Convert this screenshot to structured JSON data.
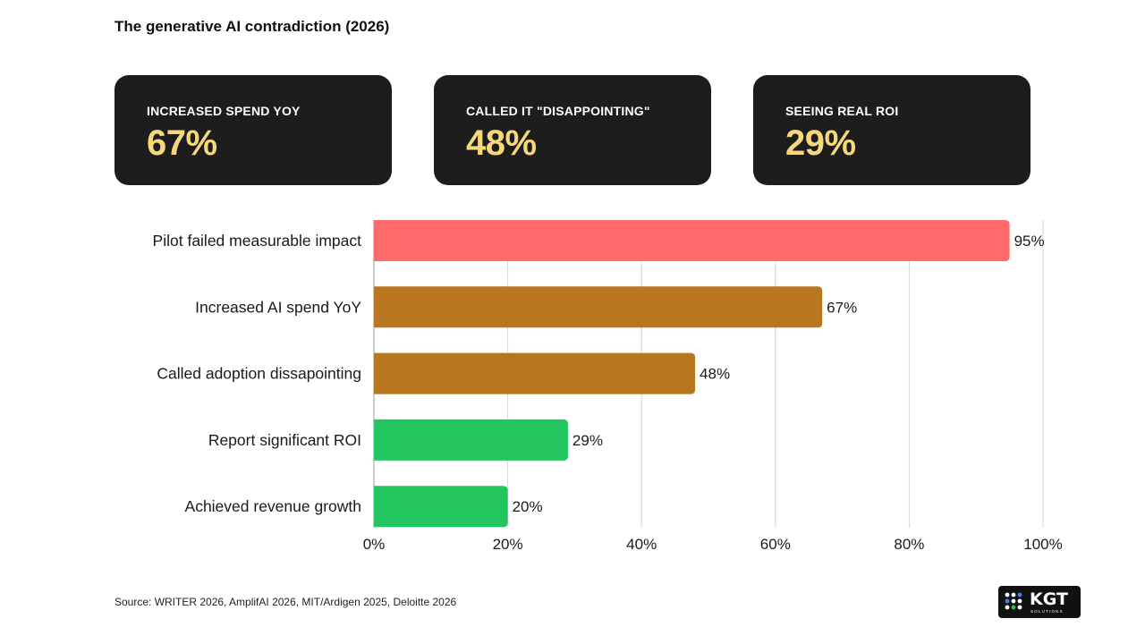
{
  "title": "The generative AI contradiction (2026)",
  "stats": [
    {
      "label": "INCREASED SPEND YOY",
      "value": "67%"
    },
    {
      "label": "CALLED IT \"DISAPPOINTING\"",
      "value": "48%"
    },
    {
      "label": "SEEING REAL ROI",
      "value": "29%"
    }
  ],
  "chart_data": {
    "type": "bar",
    "orientation": "horizontal",
    "title": "",
    "xlabel": "",
    "ylabel": "",
    "categories": [
      "Pilot failed measurable impact",
      "Increased AI spend YoY",
      "Called adoption dissapointing",
      "Report significant ROI",
      "Achieved revenue growth"
    ],
    "values": [
      95,
      67,
      48,
      29,
      20
    ],
    "value_labels": [
      "95%",
      "67%",
      "48%",
      "29%",
      "20%"
    ],
    "colors": [
      "#ff6b6b",
      "#b8771f",
      "#b8771f",
      "#22c55e",
      "#22c55e"
    ],
    "xlim": [
      0,
      100
    ],
    "xticks": [
      0,
      20,
      40,
      60,
      80,
      100
    ],
    "xtick_labels": [
      "0%",
      "20%",
      "40%",
      "60%",
      "80%",
      "100%"
    ],
    "grid": "vertical"
  },
  "source": "Source: WRITER 2026, AmplifAI 2026, MIT/Ardigen 2025, Deloitte 2026",
  "logo": {
    "name": "KGT",
    "subtitle": "SOLUTIONS"
  }
}
